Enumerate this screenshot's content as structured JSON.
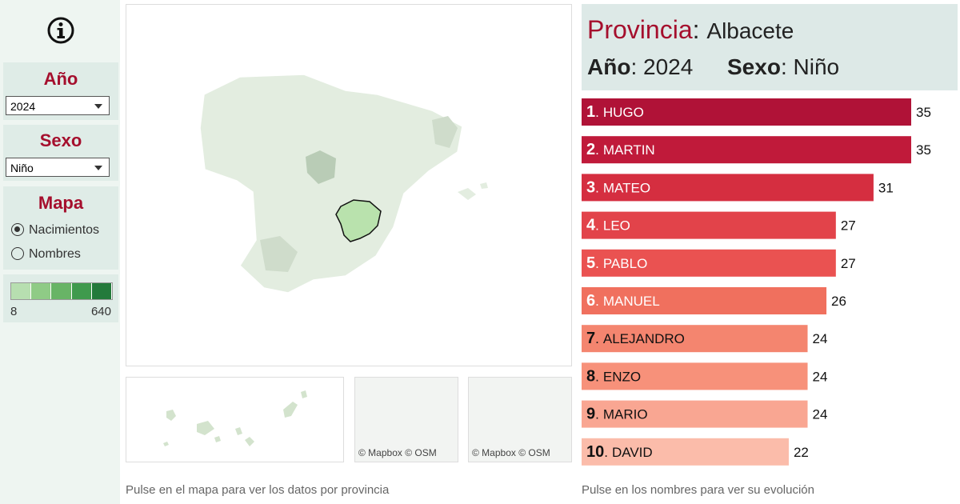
{
  "sidebar": {
    "ano": {
      "label": "Año",
      "selected": "2024"
    },
    "sexo": {
      "label": "Sexo",
      "selected": "Niño"
    },
    "mapa": {
      "label": "Mapa",
      "options": [
        "Nacimientos",
        "Nombres"
      ],
      "selected_index": 0
    },
    "legend": {
      "min": 8,
      "max": 640,
      "colors": [
        "#b7dfb0",
        "#8fcb86",
        "#68b466",
        "#3f9a4d",
        "#237a3b"
      ]
    }
  },
  "map": {
    "credits": [
      "© Mapbox",
      "© OSM"
    ],
    "footer": "Pulse en el mapa para ver los datos por provincia"
  },
  "header": {
    "provincia_label": "Provincia",
    "provincia": "Albacete",
    "ano_label": "Año",
    "ano": "2024",
    "sexo_label": "Sexo",
    "sexo": "Niño",
    "separator": ":"
  },
  "chart_data": {
    "type": "bar",
    "orientation": "horizontal",
    "ranks": [
      "1",
      "2",
      "3",
      "4",
      "5",
      "6",
      "7",
      "8",
      "9",
      "10"
    ],
    "rank_separator": ".",
    "categories": [
      "HUGO",
      "MARTIN",
      "MATEO",
      "LEO",
      "PABLO",
      "MANUEL",
      "ALEJANDRO",
      "ENZO",
      "MARIO",
      "DAVID"
    ],
    "values": [
      35,
      35,
      31,
      27,
      27,
      26,
      24,
      24,
      24,
      22
    ],
    "colors": [
      "#b01237",
      "#c01a3a",
      "#d52e40",
      "#e2434a",
      "#ea5251",
      "#f0705e",
      "#f4856f",
      "#f7917a",
      "#f9a692",
      "#fbbcaa"
    ],
    "footer": "Pulse en los nombres para ver su evolución"
  }
}
